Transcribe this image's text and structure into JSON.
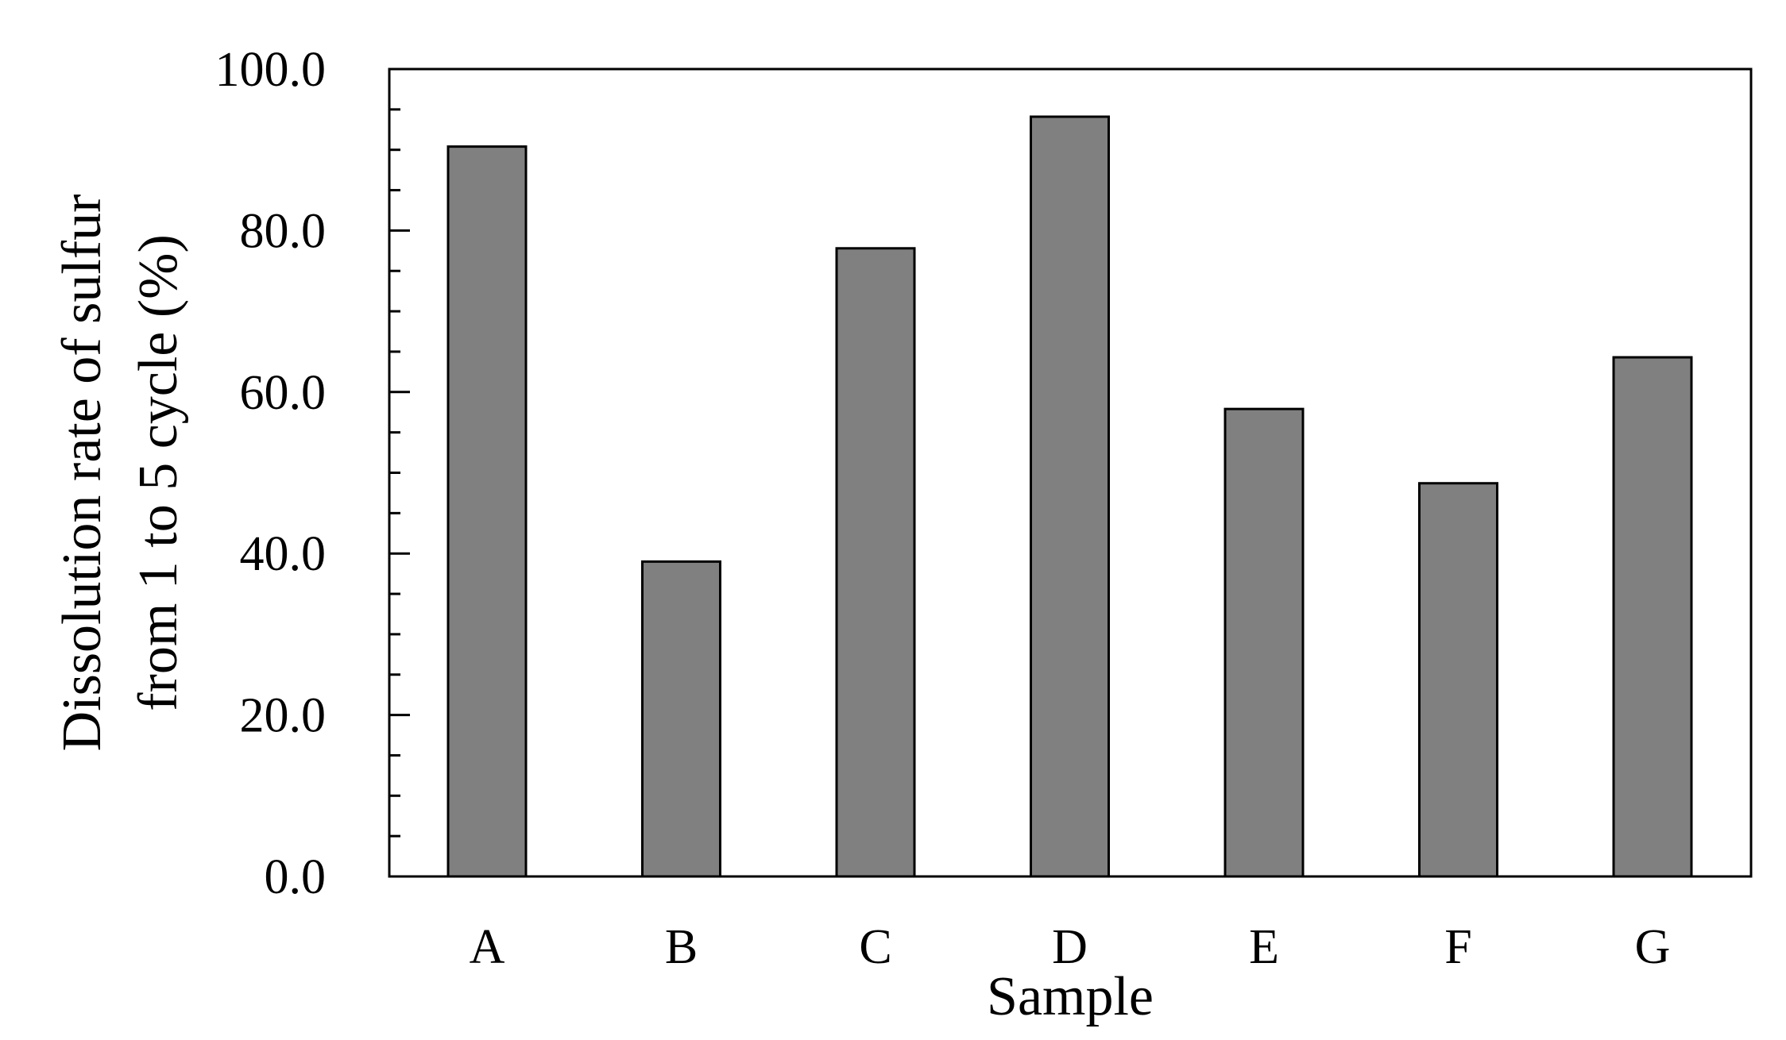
{
  "chart_data": {
    "type": "bar",
    "title": "",
    "xlabel": "Sample",
    "ylabel_lines": [
      "Dissolution rate of sulfur",
      "from 1 to 5 cycle (%)"
    ],
    "categories": [
      "A",
      "B",
      "C",
      "D",
      "E",
      "F",
      "G"
    ],
    "values": [
      90.4,
      39.0,
      77.8,
      94.1,
      57.9,
      48.7,
      64.3
    ],
    "ylim": [
      0,
      100
    ],
    "yticks": [
      0,
      20,
      40,
      60,
      80,
      100
    ],
    "ytick_labels": [
      "0.0",
      "20.0",
      "40.0",
      "60.0",
      "80.0",
      "100.0"
    ],
    "y_minor_step": 5,
    "grid": false,
    "legend": "none",
    "bar_color": "#808080"
  }
}
